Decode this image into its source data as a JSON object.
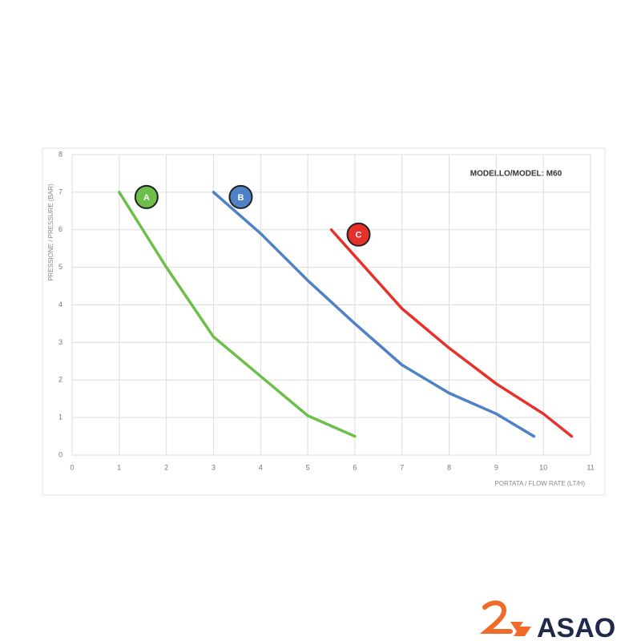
{
  "chart_data": {
    "type": "line",
    "title": "MODELLO/MODEL: M60",
    "x_label": "PORTATA / FLOW RATE (LT/H)",
    "y_label": "PRESSIONE / PRESSURE (BAR)",
    "xlim": [
      0,
      11
    ],
    "xticks": [
      0,
      1,
      2,
      3,
      4,
      5,
      6,
      7,
      8,
      9,
      10,
      11
    ],
    "ylim": [
      0,
      8
    ],
    "yticks": [
      0,
      1,
      2,
      3,
      4,
      5,
      6,
      7,
      8
    ],
    "grid": true,
    "series": [
      {
        "name": "A",
        "color": "#6cbf4a",
        "x": [
          1,
          1.5,
          2,
          3,
          4,
          5,
          6
        ],
        "values": [
          7,
          6.0,
          5.0,
          3.15,
          2.1,
          1.05,
          0.5
        ]
      },
      {
        "name": "B",
        "color": "#4f81c7",
        "x": [
          3,
          4,
          5,
          6,
          7,
          8,
          9,
          9.8
        ],
        "values": [
          7,
          5.9,
          4.65,
          3.5,
          2.4,
          1.65,
          1.1,
          0.5
        ]
      },
      {
        "name": "C",
        "color": "#e8302a",
        "x": [
          5.5,
          6,
          7,
          8,
          9,
          10,
          10.6
        ],
        "values": [
          6,
          5.3,
          3.9,
          2.85,
          1.9,
          1.1,
          0.5
        ]
      }
    ]
  },
  "logo": {
    "text": "ASAO"
  }
}
